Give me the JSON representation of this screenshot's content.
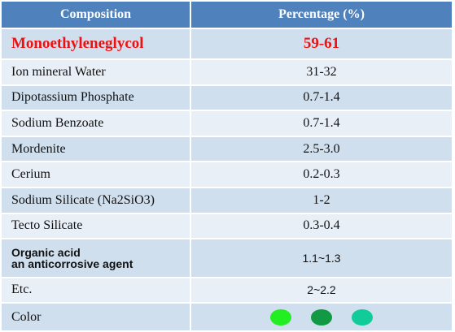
{
  "table": {
    "header": [
      "Composition",
      "Percentage (%)"
    ],
    "rows": [
      [
        "Monoethyleneglycol",
        "59-61"
      ],
      [
        "Ion mineral Water",
        "31-32"
      ],
      [
        "Dipotassium Phosphate",
        "0.7-1.4"
      ],
      [
        "Sodium Benzoate",
        "0.7-1.4"
      ],
      [
        "Mordenite",
        "2.5-3.0"
      ],
      [
        "Cerium",
        "0.2-0.3"
      ],
      [
        "Sodium Silicate (Na2SiO3)",
        "1-2"
      ],
      [
        "Tecto Silicate",
        "0.3-0.4"
      ],
      [
        [
          "Organic acid",
          "an anticorrosive agent"
        ],
        "1.1~1.3"
      ],
      [
        "Etc.",
        "2~2.2"
      ]
    ],
    "color_row": {
      "label": "Color",
      "swatches": [
        "#22ee22",
        "#119944",
        "#11cc99"
      ]
    }
  }
}
